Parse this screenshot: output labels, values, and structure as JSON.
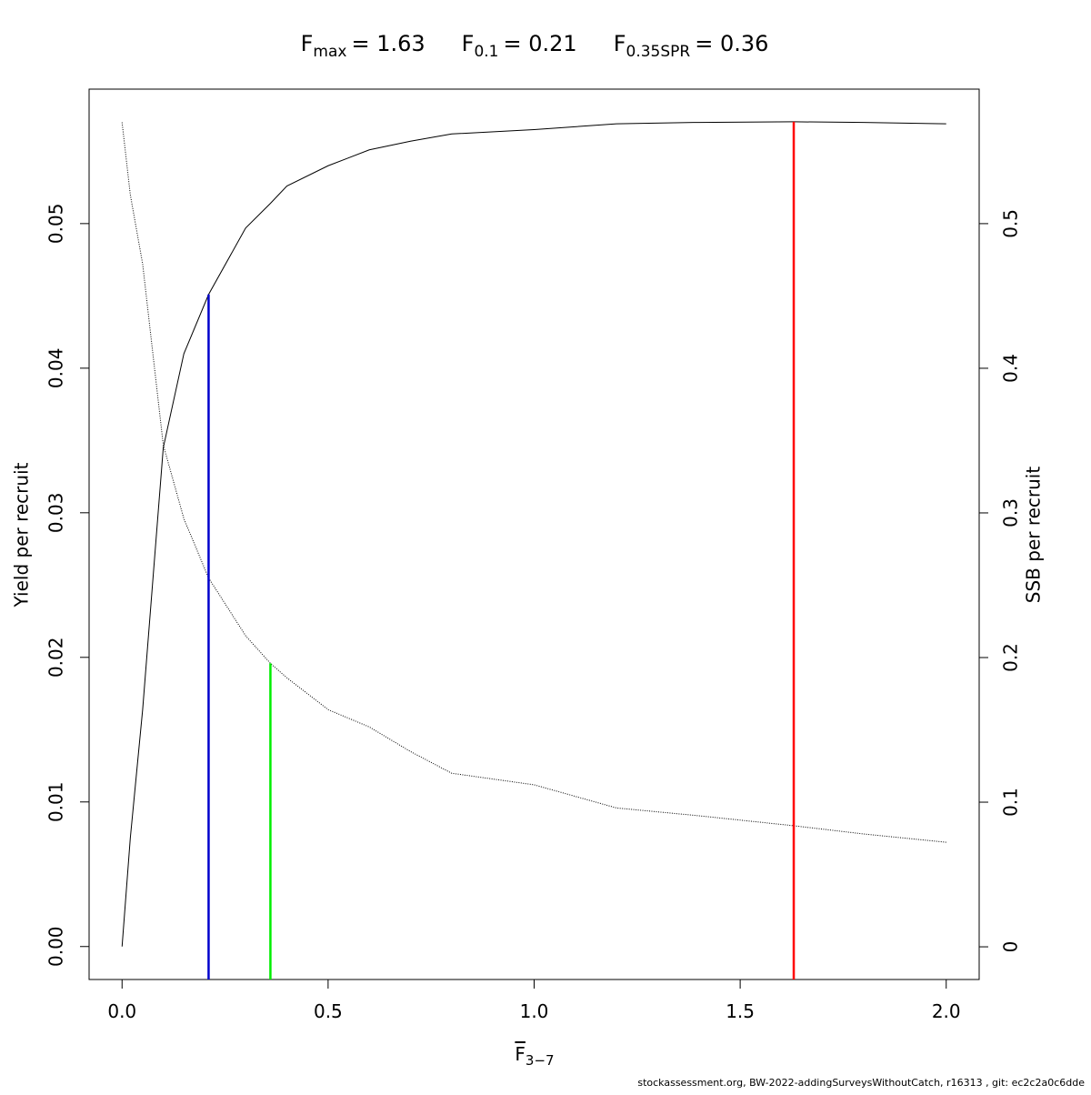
{
  "chart_data": {
    "type": "line",
    "reference_points": [
      {
        "symbol": "F",
        "subscript": "max",
        "value": 1.63,
        "label": "= 1.63",
        "color": "#ff0000",
        "top": 0.05704
      },
      {
        "symbol": "F",
        "subscript": "0.1",
        "value": 0.21,
        "label": "= 0.21",
        "color": "#0000cc",
        "top": 0.0451
      },
      {
        "symbol": "F",
        "subscript": "0.35SPR",
        "value": 0.36,
        "label": "= 0.36",
        "color": "#00ee00",
        "top": 0.196,
        "axis": "y2"
      }
    ],
    "xlabel": {
      "text": "F",
      "subscript": "3−7"
    },
    "ylabel": "Yield per recruit",
    "y2label": "SSB per recruit",
    "footer": "stockassessment.org, BW-2022-addingSurveysWithoutCatch, r16313 , git: ec2c2a0c6dde",
    "x": [
      0,
      0.02,
      0.05,
      0.1,
      0.15,
      0.21,
      0.3,
      0.36,
      0.4,
      0.5,
      0.6,
      0.7,
      0.8,
      1.0,
      1.2,
      1.4,
      1.63,
      1.8,
      2.0
    ],
    "series": [
      {
        "name": "Yield per recruit",
        "color": "#000000",
        "dash": "none",
        "values": [
          0,
          0.0075,
          0.0164,
          0.0345,
          0.041,
          0.0451,
          0.0497,
          0.0514,
          0.0526,
          0.054,
          0.0551,
          0.0557,
          0.0562,
          0.0565,
          0.0569,
          0.057,
          0.05704,
          0.057,
          0.0569
        ]
      },
      {
        "name": "SSB per recruit",
        "color": "#000000",
        "dash": "1 1.5",
        "axis": "y2",
        "values": [
          0.57,
          0.52,
          0.472,
          0.347,
          0.296,
          0.255,
          0.215,
          0.196,
          0.186,
          0.164,
          0.152,
          0.135,
          0.12,
          0.112,
          0.096,
          0.0906,
          0.0837,
          0.078,
          0.0723
        ]
      }
    ],
    "xlim": [
      -0.08,
      2.08
    ],
    "ylim": [
      -0.00228,
      0.0593
    ],
    "y2lim": [
      -0.0226,
      0.593
    ],
    "xticks": [
      {
        "value": 0,
        "label": "0.0"
      },
      {
        "value": 0.5,
        "label": "0.5"
      },
      {
        "value": 1,
        "label": "1.0"
      },
      {
        "value": 1.5,
        "label": "1.5"
      },
      {
        "value": 2,
        "label": "2.0"
      }
    ],
    "yticks": [
      {
        "value": 0,
        "label": "0.00"
      },
      {
        "value": 0.01,
        "label": "0.01"
      },
      {
        "value": 0.02,
        "label": "0.02"
      },
      {
        "value": 0.03,
        "label": "0.03"
      },
      {
        "value": 0.04,
        "label": "0.04"
      },
      {
        "value": 0.05,
        "label": "0.05"
      }
    ],
    "y2ticks": [
      0,
      0.1,
      0.2,
      0.3,
      0.4,
      0.5
    ]
  }
}
